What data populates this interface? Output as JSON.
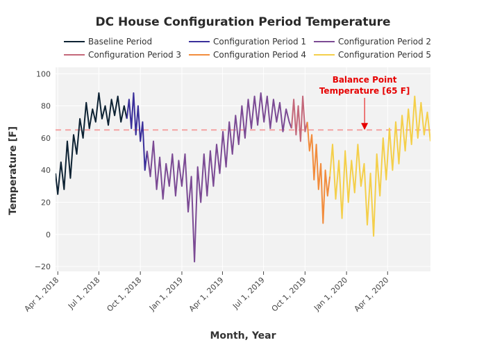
{
  "chart_data": {
    "type": "line",
    "title": "DC House Configuration Period Temperature",
    "xlabel": "Month, Year",
    "ylabel": "Temperature [F]",
    "ylim": [
      -23,
      104
    ],
    "xlim": [
      "2018-03-27",
      "2020-07-05"
    ],
    "yticks": [
      -20,
      0,
      20,
      40,
      60,
      80,
      100
    ],
    "yticklabels": [
      "−20",
      "0",
      "20",
      "40",
      "60",
      "80",
      "100"
    ],
    "xticks": [
      "2018-04-01",
      "2018-07-01",
      "2018-10-01",
      "2019-01-01",
      "2019-04-01",
      "2019-07-01",
      "2019-10-01",
      "2020-01-01",
      "2020-04-01"
    ],
    "xticklabels": [
      "Apr 1, 2018",
      "Jul 1, 2018",
      "Oct 1, 2018",
      "Jan 1, 2019",
      "Apr 1, 2019",
      "Jul 1, 2019",
      "Oct 1, 2019",
      "Jan 1, 2020",
      "Apr 1, 2020"
    ],
    "grid": true,
    "legend_position": "top",
    "reference_line": {
      "y": 65,
      "color": "#f4a3a3",
      "style": "dashed"
    },
    "annotation": {
      "text_lines": [
        "Balance Point",
        "Temperature [65 F]"
      ],
      "x": "2020-02-10",
      "y": 65,
      "color": "#e60000"
    },
    "series": [
      {
        "name": "Baseline Period",
        "color": "#0d2233",
        "points": [
          [
            "2018-03-27",
            38
          ],
          [
            "2018-04-01",
            25
          ],
          [
            "2018-04-08",
            45
          ],
          [
            "2018-04-15",
            28
          ],
          [
            "2018-04-22",
            58
          ],
          [
            "2018-04-29",
            35
          ],
          [
            "2018-05-06",
            62
          ],
          [
            "2018-05-13",
            50
          ],
          [
            "2018-05-20",
            72
          ],
          [
            "2018-05-27",
            60
          ],
          [
            "2018-06-03",
            82
          ],
          [
            "2018-06-10",
            66
          ],
          [
            "2018-06-17",
            78
          ],
          [
            "2018-06-24",
            70
          ],
          [
            "2018-07-01",
            88
          ],
          [
            "2018-07-08",
            72
          ],
          [
            "2018-07-15",
            80
          ],
          [
            "2018-07-22",
            68
          ],
          [
            "2018-07-29",
            84
          ],
          [
            "2018-08-05",
            74
          ],
          [
            "2018-08-12",
            86
          ],
          [
            "2018-08-19",
            70
          ],
          [
            "2018-08-26",
            80
          ],
          [
            "2018-09-01",
            72
          ]
        ]
      },
      {
        "name": "Configuration Period 1",
        "color": "#3a2f9a",
        "points": [
          [
            "2018-09-01",
            72
          ],
          [
            "2018-09-06",
            84
          ],
          [
            "2018-09-11",
            66
          ],
          [
            "2018-09-16",
            88
          ],
          [
            "2018-09-21",
            62
          ],
          [
            "2018-09-26",
            80
          ],
          [
            "2018-10-01",
            58
          ],
          [
            "2018-10-06",
            70
          ],
          [
            "2018-10-11",
            40
          ],
          [
            "2018-10-16",
            52
          ]
        ]
      },
      {
        "name": "Configuration Period 2",
        "color": "#7b4a94",
        "points": [
          [
            "2018-10-16",
            52
          ],
          [
            "2018-10-23",
            36
          ],
          [
            "2018-10-30",
            58
          ],
          [
            "2018-11-06",
            28
          ],
          [
            "2018-11-13",
            48
          ],
          [
            "2018-11-20",
            22
          ],
          [
            "2018-11-27",
            44
          ],
          [
            "2018-12-04",
            30
          ],
          [
            "2018-12-11",
            50
          ],
          [
            "2018-12-18",
            24
          ],
          [
            "2018-12-25",
            46
          ],
          [
            "2019-01-01",
            30
          ],
          [
            "2019-01-08",
            50
          ],
          [
            "2019-01-15",
            14
          ],
          [
            "2019-01-22",
            36
          ],
          [
            "2019-01-29",
            -17
          ],
          [
            "2019-02-05",
            42
          ],
          [
            "2019-02-12",
            20
          ],
          [
            "2019-02-19",
            50
          ],
          [
            "2019-02-26",
            24
          ],
          [
            "2019-03-05",
            52
          ],
          [
            "2019-03-12",
            30
          ],
          [
            "2019-03-19",
            56
          ],
          [
            "2019-03-26",
            38
          ],
          [
            "2019-04-02",
            64
          ],
          [
            "2019-04-09",
            42
          ],
          [
            "2019-04-16",
            70
          ],
          [
            "2019-04-23",
            50
          ],
          [
            "2019-04-30",
            74
          ],
          [
            "2019-05-07",
            56
          ],
          [
            "2019-05-14",
            80
          ],
          [
            "2019-05-21",
            60
          ],
          [
            "2019-05-28",
            84
          ],
          [
            "2019-06-04",
            66
          ],
          [
            "2019-06-11",
            86
          ],
          [
            "2019-06-18",
            68
          ],
          [
            "2019-06-25",
            88
          ],
          [
            "2019-07-02",
            70
          ],
          [
            "2019-07-09",
            86
          ],
          [
            "2019-07-16",
            66
          ],
          [
            "2019-07-23",
            84
          ],
          [
            "2019-07-30",
            70
          ],
          [
            "2019-08-06",
            82
          ],
          [
            "2019-08-13",
            64
          ],
          [
            "2019-08-20",
            78
          ],
          [
            "2019-08-27",
            70
          ],
          [
            "2019-09-01",
            66
          ]
        ]
      },
      {
        "name": "Configuration Period 3",
        "color": "#c4687a",
        "points": [
          [
            "2019-09-01",
            66
          ],
          [
            "2019-09-06",
            84
          ],
          [
            "2019-09-11",
            62
          ],
          [
            "2019-09-16",
            80
          ],
          [
            "2019-09-21",
            58
          ],
          [
            "2019-09-26",
            86
          ],
          [
            "2019-10-01",
            64
          ],
          [
            "2019-10-06",
            70
          ]
        ]
      },
      {
        "name": "Configuration Period 4",
        "color": "#f28c3c",
        "points": [
          [
            "2019-10-06",
            70
          ],
          [
            "2019-10-11",
            52
          ],
          [
            "2019-10-16",
            62
          ],
          [
            "2019-10-21",
            34
          ],
          [
            "2019-10-26",
            56
          ],
          [
            "2019-10-31",
            28
          ],
          [
            "2019-11-05",
            44
          ],
          [
            "2019-11-10",
            7
          ],
          [
            "2019-11-15",
            40
          ],
          [
            "2019-11-20",
            24
          ],
          [
            "2019-11-25",
            36
          ]
        ]
      },
      {
        "name": "Configuration Period 5",
        "color": "#f4cf4a",
        "points": [
          [
            "2019-11-25",
            36
          ],
          [
            "2019-12-01",
            56
          ],
          [
            "2019-12-08",
            22
          ],
          [
            "2019-12-15",
            46
          ],
          [
            "2019-12-22",
            10
          ],
          [
            "2019-12-29",
            52
          ],
          [
            "2020-01-05",
            20
          ],
          [
            "2020-01-12",
            46
          ],
          [
            "2020-01-19",
            26
          ],
          [
            "2020-01-26",
            56
          ],
          [
            "2020-02-02",
            30
          ],
          [
            "2020-02-09",
            44
          ],
          [
            "2020-02-16",
            6
          ],
          [
            "2020-02-23",
            38
          ],
          [
            "2020-03-01",
            -1
          ],
          [
            "2020-03-08",
            50
          ],
          [
            "2020-03-15",
            24
          ],
          [
            "2020-03-22",
            60
          ],
          [
            "2020-03-29",
            34
          ],
          [
            "2020-04-05",
            66
          ],
          [
            "2020-04-12",
            40
          ],
          [
            "2020-04-19",
            70
          ],
          [
            "2020-04-26",
            44
          ],
          [
            "2020-05-03",
            74
          ],
          [
            "2020-05-10",
            52
          ],
          [
            "2020-05-17",
            78
          ],
          [
            "2020-05-24",
            56
          ],
          [
            "2020-05-31",
            86
          ],
          [
            "2020-06-07",
            60
          ],
          [
            "2020-06-14",
            82
          ],
          [
            "2020-06-21",
            62
          ],
          [
            "2020-06-28",
            76
          ],
          [
            "2020-07-05",
            58
          ]
        ]
      }
    ]
  }
}
